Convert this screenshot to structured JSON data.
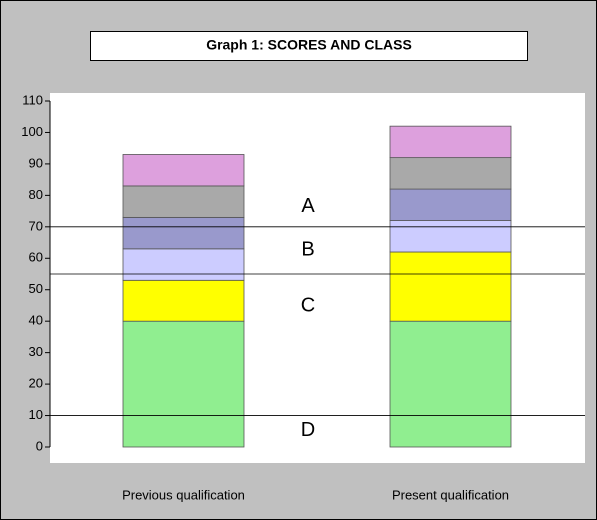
{
  "chart_data": {
    "type": "stacked_bar",
    "title": "Graph 1: SCORES AND CLASS",
    "categories": [
      "Previous qualification",
      "Present qualification"
    ],
    "series": [
      {
        "color": "#90ee90",
        "values": [
          40,
          40
        ]
      },
      {
        "color": "#ffff00",
        "values": [
          13,
          22
        ]
      },
      {
        "color": "#ccccff",
        "values": [
          10,
          10
        ]
      },
      {
        "color": "#9999cc",
        "values": [
          10,
          10
        ]
      },
      {
        "color": "#a9a9a9",
        "values": [
          10,
          10
        ]
      },
      {
        "color": "#dda0dd",
        "values": [
          10,
          10
        ]
      }
    ],
    "ylim": [
      0,
      110
    ],
    "yticks": [
      0,
      10,
      20,
      30,
      40,
      50,
      60,
      70,
      80,
      90,
      100,
      110
    ],
    "reference_lines": [
      70,
      55,
      10
    ],
    "class_labels": [
      "A",
      "B",
      "C",
      "D"
    ]
  }
}
